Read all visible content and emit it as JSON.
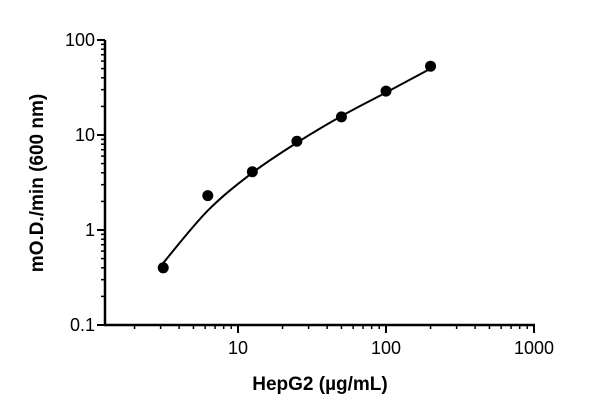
{
  "chart_data": {
    "type": "scatter",
    "title": "",
    "xlabel": "HepG2 (µg/mL)",
    "ylabel": "mO.D./min (600 nm)",
    "xscale": "log",
    "yscale": "log",
    "xlim": [
      1.26,
      1000
    ],
    "ylim": [
      0.1,
      100
    ],
    "x_ticks": [
      10,
      100,
      1000
    ],
    "x_tick_labels": [
      "10",
      "100",
      "1000"
    ],
    "y_ticks": [
      0.1,
      1,
      10,
      100
    ],
    "y_tick_labels": [
      "0.1",
      "1",
      "10",
      "100"
    ],
    "grid": false,
    "legend": null,
    "series": [
      {
        "name": "HepG2",
        "marker": "circle",
        "color": "#000000",
        "x": [
          3.125,
          6.25,
          12.5,
          25,
          50,
          100,
          200
        ],
        "y": [
          0.4,
          2.3,
          4.1,
          8.6,
          15.5,
          29,
          53
        ]
      }
    ],
    "fit_curve": {
      "type": "line",
      "color": "#000000",
      "x": [
        3.125,
        6.25,
        12.5,
        25,
        50,
        100,
        200
      ],
      "y": [
        0.45,
        1.6,
        4.0,
        8.3,
        15.8,
        28,
        50
      ]
    }
  }
}
